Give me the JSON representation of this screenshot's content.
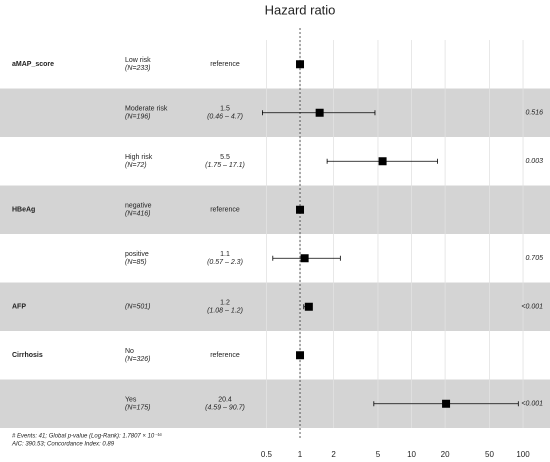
{
  "chart_data": {
    "type": "forest",
    "title": "Hazard ratio",
    "rows": [
      {
        "variable": "aMAP_score",
        "level": "Low risk",
        "n": "(N=233)",
        "estimate": 1,
        "estimate_label": "reference"
      },
      {
        "level": "Moderate risk",
        "n": "(N=196)",
        "estimate": 1.5,
        "ci_label": "(0.46 – 4.7)",
        "low": 0.46,
        "high": 4.7,
        "p": 0.516
      },
      {
        "level": "High risk",
        "n": "(N=72)",
        "estimate": 5.5,
        "ci_label": "(1.75 – 17.1)",
        "low": 1.75,
        "high": 17.1,
        "p": 0.003
      },
      {
        "variable": "HBeAg",
        "level": "negative",
        "n": "(N=416)",
        "estimate": 1,
        "estimate_label": "reference"
      },
      {
        "level": "positive",
        "n": "(N=85)",
        "estimate": 1.1,
        "ci_label": "(0.57 – 2.3)",
        "low": 0.57,
        "high": 2.3,
        "p": 0.705
      },
      {
        "variable": "AFP",
        "n": "(N=501)",
        "estimate": 1.2,
        "ci_label": "(1.08 – 1.2)",
        "low": 1.08,
        "high": 1.2,
        "p": "<0.001"
      },
      {
        "variable": "Cirrhosis",
        "level": "No",
        "n": "(N=326)",
        "estimate": 1,
        "estimate_label": "reference"
      },
      {
        "level": "Yes",
        "n": "(N=175)",
        "estimate": 20.4,
        "ci_label": "(4.59 – 90.7)",
        "low": 4.59,
        "high": 90.7,
        "p": "<0.001"
      }
    ],
    "xlim": [
      0.42,
      128
    ],
    "xticks": [
      0.5,
      1,
      2,
      5,
      10,
      20,
      50,
      100
    ],
    "log_x": true,
    "grid": true,
    "reference_line": 1,
    "band_color": "#d4d4d4",
    "mark_color": "#000000",
    "footnotes": [
      "# Events: 41; Global p-value (Log-Rank): 1.7807 × 10⁻¹⁶",
      "AIC: 390.53; Concordance Index: 0.89"
    ]
  }
}
